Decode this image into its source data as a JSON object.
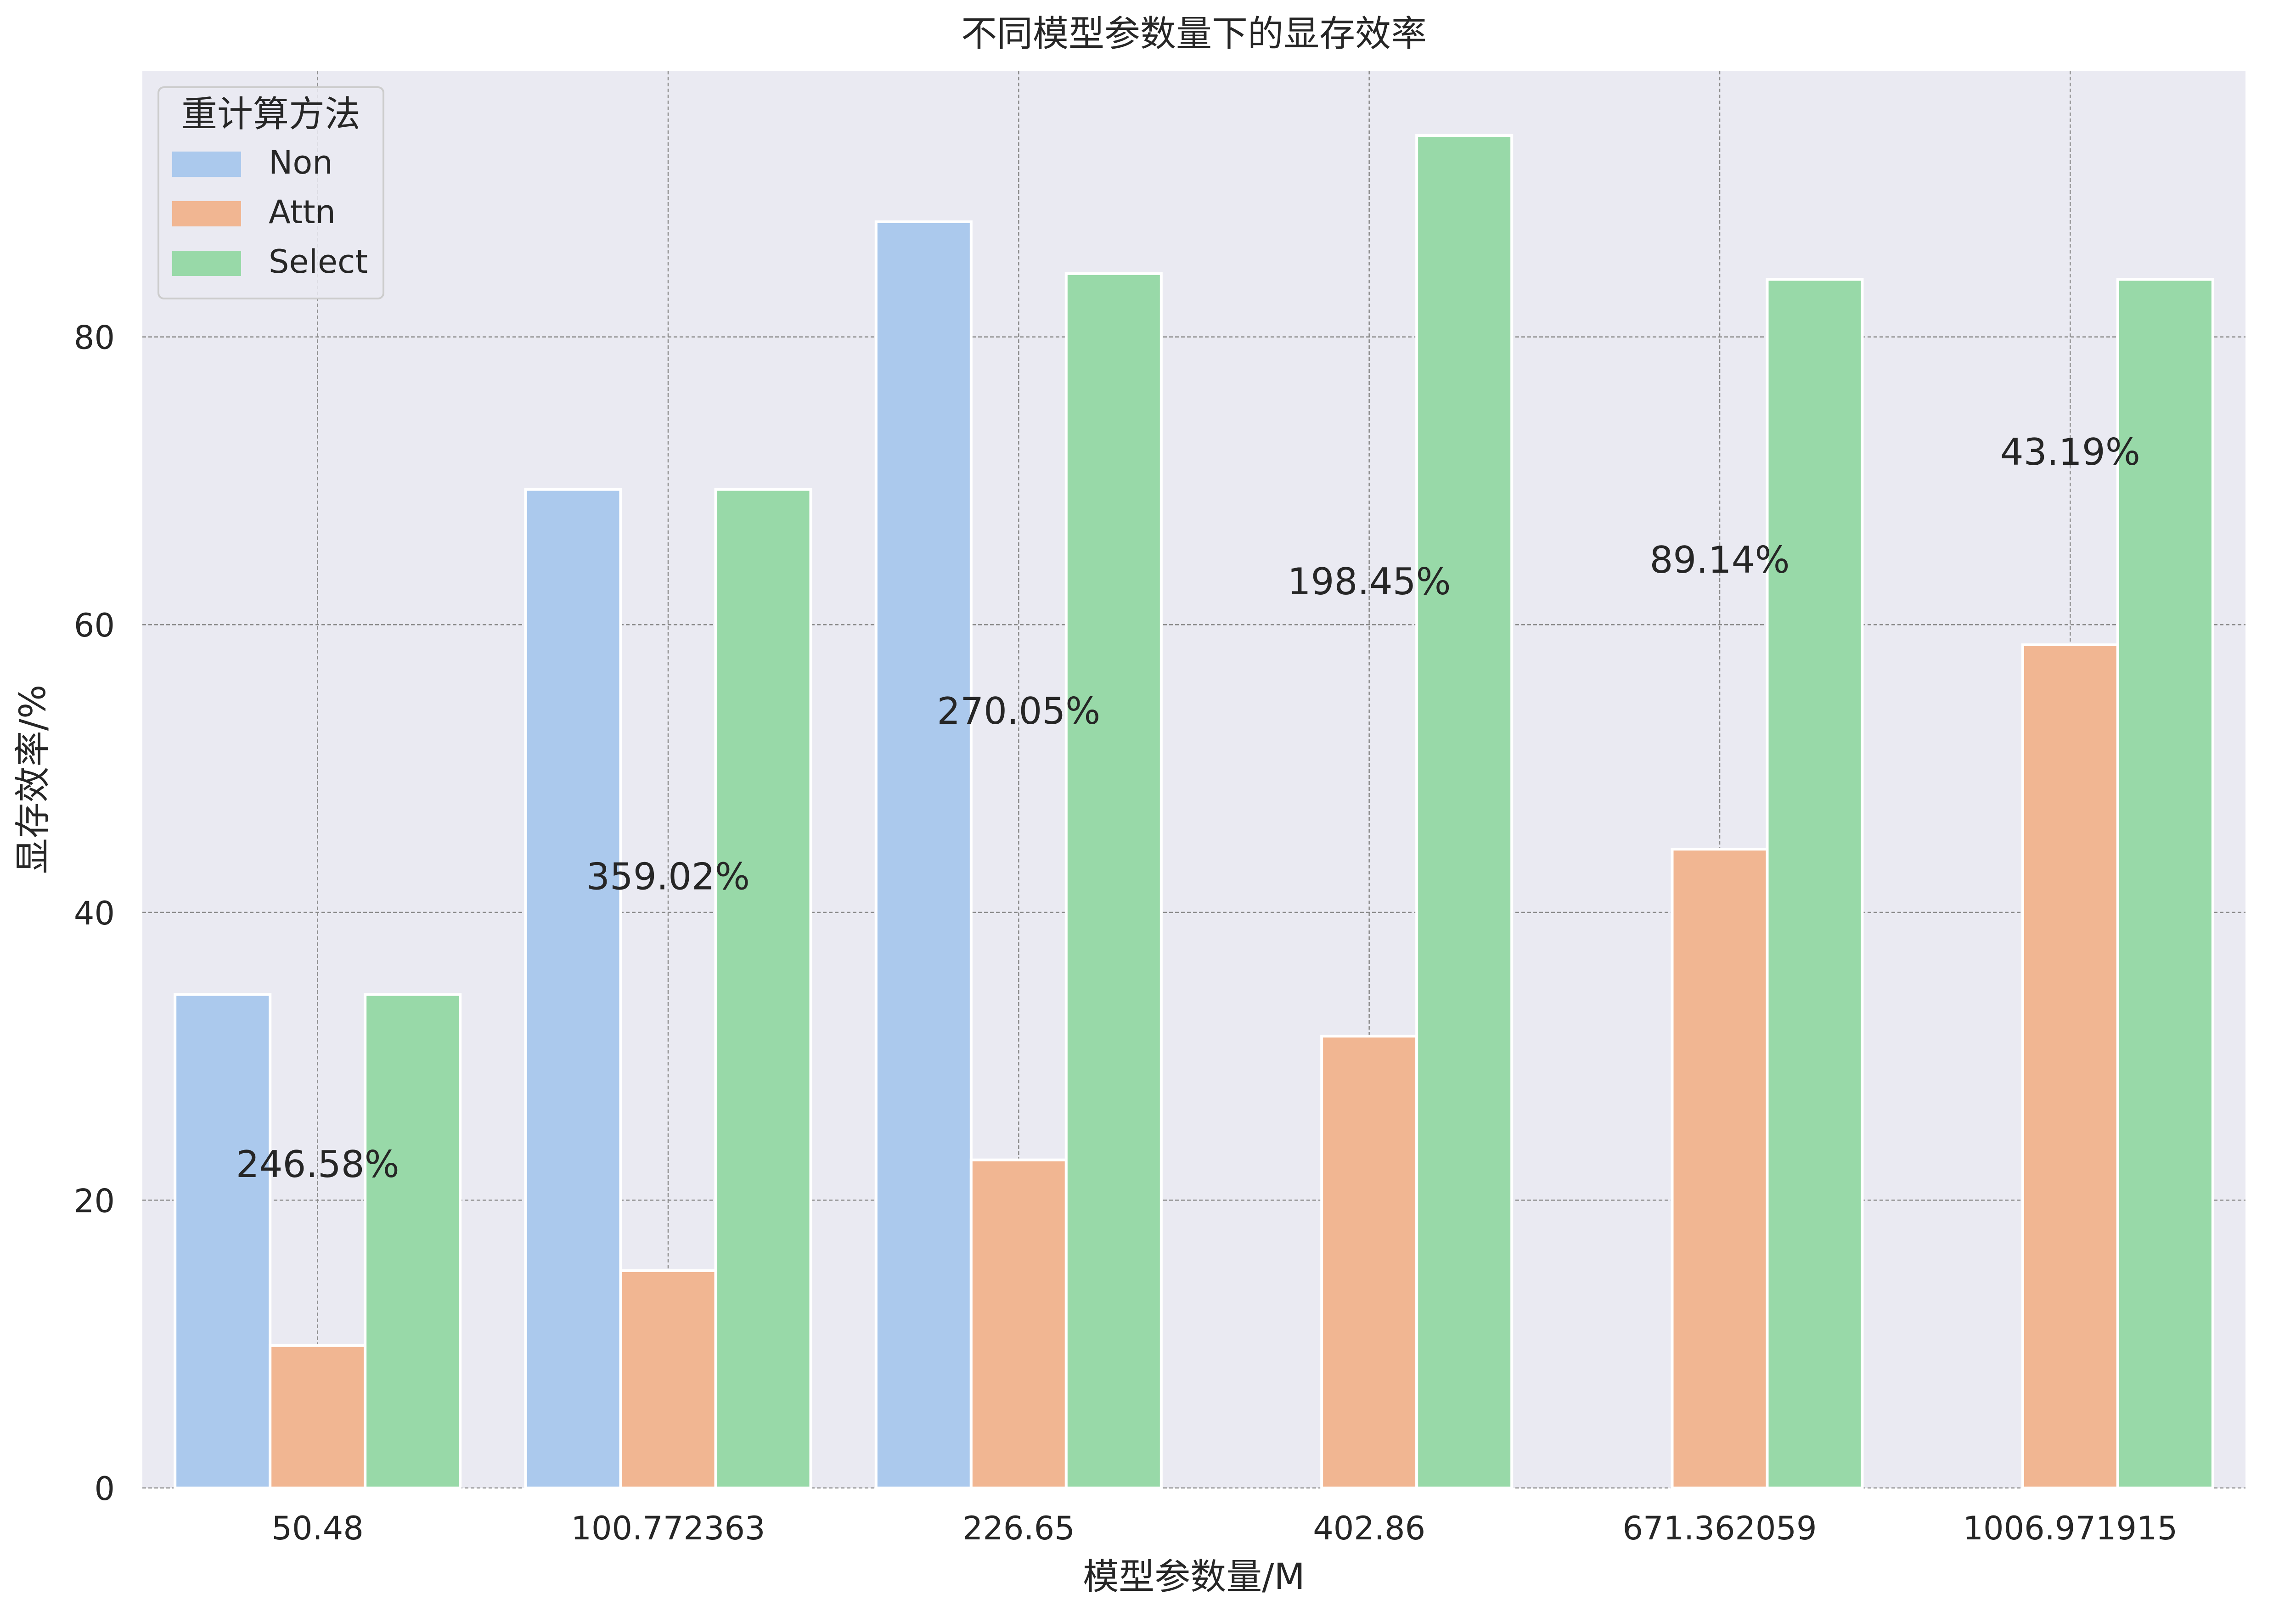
{
  "chart_data": {
    "type": "bar",
    "title": "不同模型参数量下的显存效率",
    "xlabel": "模型参数量/M",
    "ylabel": "显存效率/%",
    "categories": [
      "50.48",
      "100.772363",
      "226.65",
      "402.86",
      "671.362059",
      "1006.971915"
    ],
    "series": [
      {
        "name": "Non",
        "values": [
          34.3,
          69.4,
          88.0,
          null,
          null,
          null
        ]
      },
      {
        "name": "Attn",
        "values": [
          9.9,
          15.1,
          22.8,
          31.4,
          44.4,
          58.6
        ]
      },
      {
        "name": "Select",
        "values": [
          34.3,
          69.4,
          84.4,
          94.0,
          84.0,
          84.0
        ]
      }
    ],
    "annotations": [
      {
        "category": "50.48",
        "text": "246.58%",
        "y": 22.5
      },
      {
        "category": "100.772363",
        "text": "359.02%",
        "y": 42.5
      },
      {
        "category": "226.65",
        "text": "270.05%",
        "y": 54.0
      },
      {
        "category": "402.86",
        "text": "198.45%",
        "y": 63.0
      },
      {
        "category": "671.362059",
        "text": "89.14%",
        "y": 64.5
      },
      {
        "category": "1006.971915",
        "text": "43.19%",
        "y": 72.0
      }
    ],
    "ylim": [
      0,
      98.5
    ],
    "yticks": [
      0,
      20,
      40,
      60,
      80
    ],
    "grid": true,
    "legend": {
      "title": "重计算方法",
      "position": "top-left"
    },
    "colors": {
      "Non": "#abc9ed",
      "Attn": "#f1b692",
      "Select": "#98d9a8",
      "background": "#eaeaf2",
      "grid": "#8c8c8c"
    }
  }
}
